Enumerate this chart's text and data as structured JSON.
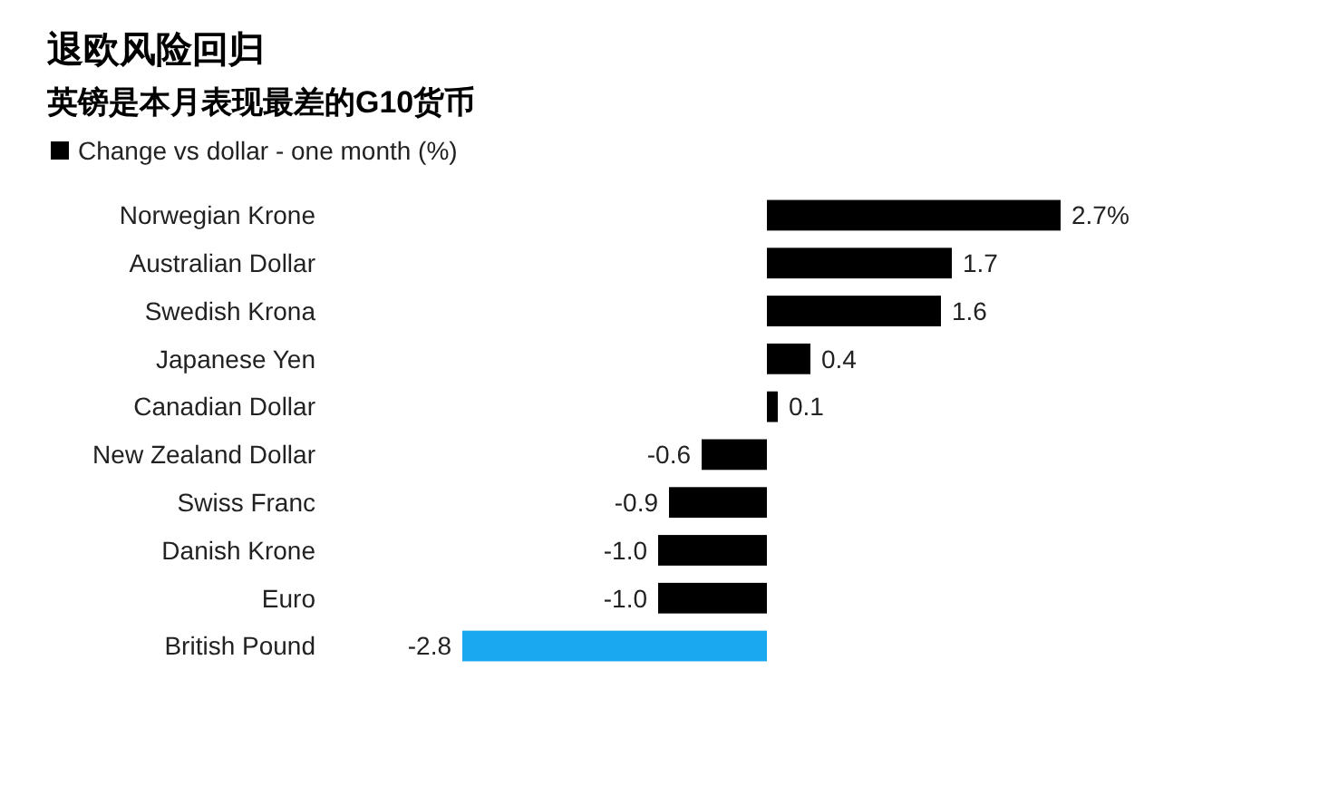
{
  "chart_data": {
    "type": "bar",
    "orientation": "horizontal",
    "title": "退欧风险回归",
    "subtitle": "英镑是本月表现最差的G10货币",
    "legend": "top left",
    "data_labels": false,
    "categories": [
      "Norwegian Krone",
      "Australian Dollar",
      "Swedish Krona",
      "Japanese Yen",
      "Canadian Dollar",
      "New Zealand Dollar",
      "Swiss Franc",
      "Danish Krone",
      "Euro",
      "British Pound"
    ],
    "series": [
      {
        "name": "Change vs dollar - one month (%)",
        "color": "#000000",
        "colors": [
          "#000000",
          "#000000",
          "#000000",
          "#000000",
          "#000000",
          "#000000",
          "#000000",
          "#000000",
          "#000000",
          "#1aa9f0"
        ],
        "values": [
          2.7,
          1.7,
          1.6,
          0.4,
          0.1,
          -0.6,
          -0.9,
          -1.0,
          -1.0,
          -2.8
        ],
        "value_labels": [
          "2.7%",
          "1.7",
          "1.6",
          "0.4",
          "0.1",
          "-0.6",
          "-0.9",
          "-1.0",
          "-1.0",
          "-2.8"
        ]
      }
    ]
  }
}
